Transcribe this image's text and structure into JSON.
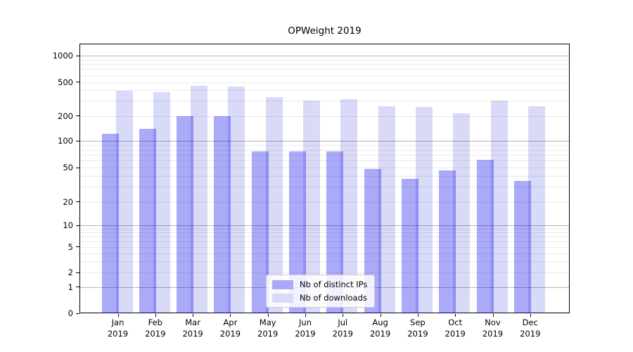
{
  "chart_data": {
    "type": "bar",
    "title": "OPWeight 2019",
    "categories": [
      "Jan",
      "Feb",
      "Mar",
      "Apr",
      "May",
      "Jun",
      "Jul",
      "Aug",
      "Sep",
      "Oct",
      "Nov",
      "Dec"
    ],
    "x_year_label": "2019",
    "y_tick_labels": [
      1000,
      500,
      200,
      100,
      50,
      20,
      10,
      5,
      2,
      1,
      0
    ],
    "yscale": "symlog",
    "ylim": [
      0,
      1000
    ],
    "grid": "on",
    "legend_position": "lower-center-inside",
    "series": [
      {
        "name": "Nb of distinct IPs",
        "swatch_hex": "#a9a9f8",
        "bar_rgba": "rgba(5,5,235,0.34)",
        "values": [
          123,
          140,
          197,
          200,
          77,
          77,
          77,
          48,
          37,
          47,
          61,
          35
        ]
      },
      {
        "name": "Nb of downloads",
        "swatch_hex": "#d9d9f8",
        "bar_rgba": "rgba(3,3,209,0.15)",
        "values": [
          395,
          380,
          450,
          440,
          330,
          300,
          315,
          257,
          253,
          214,
          303,
          258
        ]
      }
    ]
  }
}
